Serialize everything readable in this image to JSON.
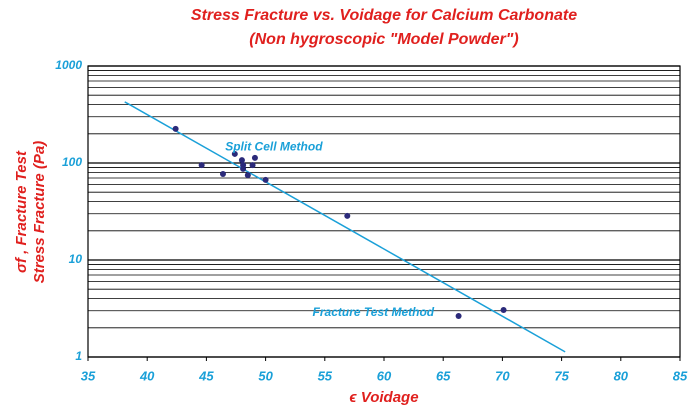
{
  "chart_data": {
    "type": "scatter",
    "title": "Stress Fracture vs. Voidage for Calcium Carbonate",
    "subtitle": "(Non hygroscopic \"Model Powder\")",
    "x_label": "ϵ Voidage",
    "y_label": [
      "σf , Fracture Test",
      "Stress Fracture (Pa)"
    ],
    "x": [
      42.4,
      44.6,
      46.4,
      47.4,
      48.0,
      48.1,
      48.1,
      48.5,
      48.9,
      49.1,
      50.0,
      56.9,
      66.3,
      70.1
    ],
    "y": [
      225,
      95,
      77,
      124,
      107,
      95,
      87,
      75,
      95,
      113,
      67,
      28.5,
      2.65,
      3.05
    ],
    "color": "#2b2a7a",
    "fit": {
      "x": [
        38.1,
        75.3
      ],
      "y": [
        427,
        1.13
      ],
      "color": "#1aa0d8"
    },
    "annotations": [
      {
        "text": "Split Cell Method",
        "x": 50.7,
        "y": 145
      },
      {
        "text": "Fracture Test Method",
        "x": 59.1,
        "y": 2.85
      }
    ],
    "xlim": [
      35,
      85
    ],
    "xticks": [
      35,
      40,
      45,
      50,
      55,
      60,
      65,
      70,
      75,
      80,
      85
    ],
    "ylim": [
      1,
      1000
    ],
    "yticks": [
      1,
      10,
      100,
      1000
    ],
    "ylog": true,
    "minor_yticks": [
      2,
      3,
      4,
      5,
      6,
      7,
      8,
      9,
      20,
      30,
      40,
      50,
      60,
      70,
      80,
      90,
      200,
      300,
      400,
      500,
      600,
      700,
      800,
      900
    ],
    "grid": true
  }
}
